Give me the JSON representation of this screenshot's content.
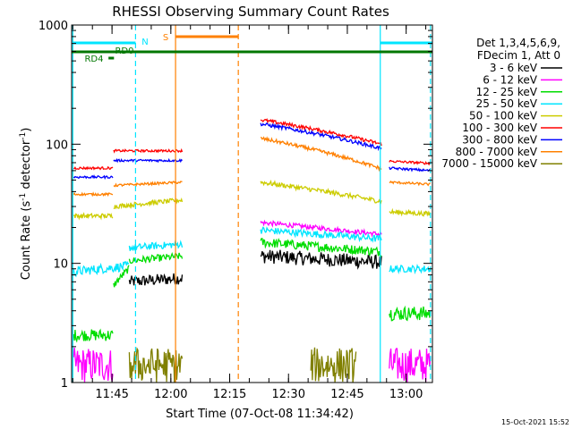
{
  "stamp": "15-Oct-2021 15:52",
  "chart_data": {
    "type": "line",
    "title": "RHESSI Observing Summary Count Rates",
    "xlabel": "Start Time (07-Oct-08 11:34:42)",
    "ylabel_main": "Count Rate (s",
    "ylabel_sup1": "-1",
    "ylabel_mid": " detector",
    "ylabel_sup2": "-1",
    "ylabel_end": ")",
    "yscale": "log",
    "ylim": [
      1,
      1000
    ],
    "xlim_minutes": [
      0,
      92
    ],
    "x_ticks": [
      {
        "m": 10.3,
        "label": "11:45"
      },
      {
        "m": 25.3,
        "label": "12:00"
      },
      {
        "m": 40.3,
        "label": "12:15"
      },
      {
        "m": 55.3,
        "label": "12:30"
      },
      {
        "m": 70.3,
        "label": "12:45"
      },
      {
        "m": 85.3,
        "label": "13:00"
      }
    ],
    "y_ticks": [
      {
        "v": 1,
        "label": "1"
      },
      {
        "v": 10,
        "label": "10"
      },
      {
        "v": 100,
        "label": "100"
      },
      {
        "v": 1000,
        "label": "1000"
      }
    ],
    "legend": {
      "header": [
        "Det 1,3,4,5,6,9,",
        "FDecim 1, Att 0"
      ],
      "entries": [
        {
          "label": "3 - 6 keV",
          "color": "#000000"
        },
        {
          "label": "6 - 12 keV",
          "color": "#ff00ff"
        },
        {
          "label": "12 - 25 keV",
          "color": "#00dd00"
        },
        {
          "label": "25 - 50 keV",
          "color": "#00e5ff"
        },
        {
          "label": "50 - 100 keV",
          "color": "#cccc00"
        },
        {
          "label": "100 - 300 keV",
          "color": "#ff0000"
        },
        {
          "label": "300 - 800 keV",
          "color": "#0000ff"
        },
        {
          "label": "800 - 7000 keV",
          "color": "#ff8000"
        },
        {
          "label": "7000 - 15000 keV",
          "color": "#808000"
        }
      ]
    },
    "flags": [
      {
        "label": "N",
        "color": "#00e5ff"
      },
      {
        "label": "S",
        "color": "#ff8000"
      },
      {
        "label": "RD0",
        "color": "#007700"
      },
      {
        "label": "RD4",
        "color": "#007700"
      }
    ],
    "series": [
      {
        "name": "3 - 6 keV",
        "color": "#000000",
        "segments": [
          {
            "x0": 14.7,
            "x1": 28.2,
            "y0": 7,
            "y1": 7.5,
            "noise": 0.05
          },
          {
            "x0": 48.2,
            "x1": 79,
            "y0": 11.5,
            "y1": 10.2,
            "noise": 0.06
          }
        ]
      },
      {
        "name": "6 - 12 keV",
        "color": "#ff00ff",
        "segments": [
          {
            "x0": 0.5,
            "x1": 10.5,
            "y0": 1.4,
            "y1": 1.4,
            "noise": 0.15
          },
          {
            "x0": 48.2,
            "x1": 79,
            "y0": 22,
            "y1": 17.5,
            "noise": 0.02
          },
          {
            "x0": 81,
            "x1": 91.5,
            "y0": 1.4,
            "y1": 1.4,
            "noise": 0.15
          }
        ]
      },
      {
        "name": "12 - 25 keV",
        "color": "#00dd00",
        "segments": [
          {
            "x0": 0.5,
            "x1": 10.5,
            "y0": 2.5,
            "y1": 2.5,
            "noise": 0.05
          },
          {
            "x0": 10.7,
            "x1": 14.6,
            "y0": 6.5,
            "y1": 9,
            "noise": 0.03
          },
          {
            "x0": 14.7,
            "x1": 28.2,
            "y0": 10.5,
            "y1": 11.5,
            "noise": 0.03
          },
          {
            "x0": 48.2,
            "x1": 79,
            "y0": 15,
            "y1": 12.5,
            "noise": 0.04
          },
          {
            "x0": 81,
            "x1": 91.5,
            "y0": 3.8,
            "y1": 3.8,
            "noise": 0.06
          }
        ]
      },
      {
        "name": "25 - 50 keV",
        "color": "#00e5ff",
        "segments": [
          {
            "x0": 0.5,
            "x1": 14.6,
            "y0": 8.5,
            "y1": 9.5,
            "noise": 0.04
          },
          {
            "x0": 14.7,
            "x1": 28.2,
            "y0": 13.5,
            "y1": 14.5,
            "noise": 0.03
          },
          {
            "x0": 48.2,
            "x1": 79,
            "y0": 19,
            "y1": 16,
            "noise": 0.03
          },
          {
            "x0": 81,
            "x1": 91.5,
            "y0": 9,
            "y1": 9,
            "noise": 0.03
          }
        ]
      },
      {
        "name": "50 - 100 keV",
        "color": "#cccc00",
        "segments": [
          {
            "x0": 0.5,
            "x1": 10.5,
            "y0": 25,
            "y1": 25,
            "noise": 0.02
          },
          {
            "x0": 10.7,
            "x1": 28.2,
            "y0": 30,
            "y1": 34,
            "noise": 0.02
          },
          {
            "x0": 48.2,
            "x1": 79,
            "y0": 48,
            "y1": 33,
            "noise": 0.02
          },
          {
            "x0": 81,
            "x1": 91.5,
            "y0": 27,
            "y1": 26,
            "noise": 0.02
          }
        ]
      },
      {
        "name": "100 - 300 keV",
        "color": "#ff0000",
        "segments": [
          {
            "x0": 0.5,
            "x1": 10.5,
            "y0": 63,
            "y1": 63,
            "noise": 0.01
          },
          {
            "x0": 10.7,
            "x1": 28.2,
            "y0": 88,
            "y1": 88,
            "noise": 0.01
          },
          {
            "x0": 48.2,
            "x1": 79,
            "y0": 160,
            "y1": 100,
            "noise": 0.015
          },
          {
            "x0": 81,
            "x1": 91.5,
            "y0": 72,
            "y1": 69,
            "noise": 0.01
          }
        ]
      },
      {
        "name": "300 - 800 keV",
        "color": "#0000ff",
        "segments": [
          {
            "x0": 0.5,
            "x1": 10.5,
            "y0": 53,
            "y1": 53,
            "noise": 0.01
          },
          {
            "x0": 10.7,
            "x1": 28.2,
            "y0": 73,
            "y1": 73,
            "noise": 0.01
          },
          {
            "x0": 48.2,
            "x1": 79,
            "y0": 148,
            "y1": 92,
            "noise": 0.015
          },
          {
            "x0": 81,
            "x1": 91.5,
            "y0": 63,
            "y1": 60,
            "noise": 0.01
          }
        ]
      },
      {
        "name": "800 - 7000 keV",
        "color": "#ff8000",
        "segments": [
          {
            "x0": 0.5,
            "x1": 10.5,
            "y0": 38,
            "y1": 38,
            "noise": 0.01
          },
          {
            "x0": 10.7,
            "x1": 28.2,
            "y0": 45,
            "y1": 48,
            "noise": 0.01
          },
          {
            "x0": 48.2,
            "x1": 79,
            "y0": 112,
            "y1": 62,
            "noise": 0.015
          },
          {
            "x0": 81,
            "x1": 91.5,
            "y0": 48,
            "y1": 46,
            "noise": 0.01
          }
        ]
      },
      {
        "name": "7000 - 15000 keV",
        "color": "#808000",
        "segments": [
          {
            "x0": 14.7,
            "x1": 28.2,
            "y0": 1.4,
            "y1": 1.4,
            "noise": 0.15
          },
          {
            "x0": 61,
            "x1": 72.5,
            "y0": 1.4,
            "y1": 1.4,
            "noise": 0.15
          }
        ]
      }
    ]
  }
}
